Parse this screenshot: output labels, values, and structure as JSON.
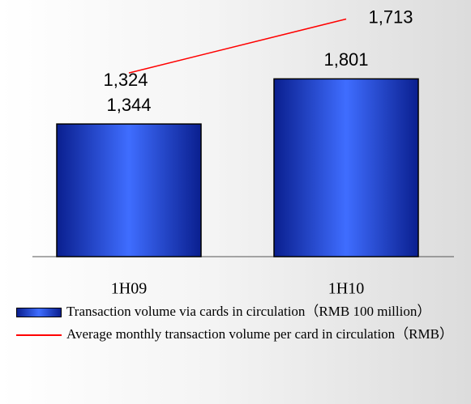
{
  "chart_data": {
    "type": "bar-line",
    "categories": [
      "1H09",
      "1H10"
    ],
    "series": [
      {
        "name": "Transaction volume via cards in circulation（RMB 100 million）",
        "type": "bar",
        "color": "#1f3fd6",
        "values": [
          1344,
          1801
        ],
        "value_labels": [
          "1,344",
          "1,801"
        ]
      },
      {
        "name": "Average monthly transaction volume per card in circulation（RMB）",
        "type": "line",
        "axis": "y2",
        "color": "#ff0000",
        "values": [
          1324,
          1713
        ],
        "value_labels": [
          "1,324",
          "1,713"
        ]
      }
    ],
    "ylim": [
      0,
      2600
    ],
    "y2lim": [
      0,
      1850
    ]
  }
}
